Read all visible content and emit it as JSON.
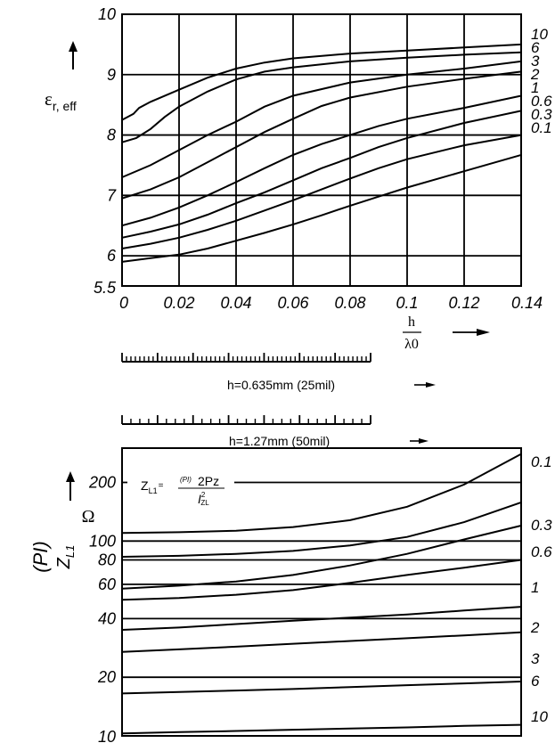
{
  "chart_data": [
    {
      "type": "line",
      "ylabel_symbol": "ε",
      "ylabel_sub": "r, eff",
      "xlabel_num": "h",
      "xlabel_den": "λ0",
      "x_ticks": [
        "0",
        "0.02",
        "0.04",
        "0.06",
        "0.08",
        "0.1",
        "0.12",
        "0.14"
      ],
      "y_ticks": [
        {
          "v": 5.5,
          "t": "5.5"
        },
        {
          "v": 6,
          "t": "6"
        },
        {
          "v": 7,
          "t": "7"
        },
        {
          "v": 8,
          "t": "8"
        },
        {
          "v": 9,
          "t": "9"
        },
        {
          "v": 10,
          "t": "10"
        }
      ],
      "xlim": [
        0,
        0.14
      ],
      "ylim": [
        5.5,
        10
      ],
      "grid": true,
      "series": [
        {
          "name": "10",
          "points": [
            [
              0,
              8.25
            ],
            [
              0.004,
              8.35
            ],
            [
              0.006,
              8.45
            ],
            [
              0.01,
              8.55
            ],
            [
              0.02,
              8.75
            ],
            [
              0.03,
              8.95
            ],
            [
              0.04,
              9.1
            ],
            [
              0.05,
              9.2
            ],
            [
              0.06,
              9.27
            ],
            [
              0.08,
              9.35
            ],
            [
              0.1,
              9.4
            ],
            [
              0.12,
              9.45
            ],
            [
              0.14,
              9.5
            ]
          ]
        },
        {
          "name": "6",
          "points": [
            [
              0,
              7.88
            ],
            [
              0.005,
              7.95
            ],
            [
              0.01,
              8.1
            ],
            [
              0.015,
              8.3
            ],
            [
              0.02,
              8.47
            ],
            [
              0.03,
              8.72
            ],
            [
              0.04,
              8.92
            ],
            [
              0.05,
              9.05
            ],
            [
              0.06,
              9.12
            ],
            [
              0.08,
              9.22
            ],
            [
              0.1,
              9.28
            ],
            [
              0.12,
              9.33
            ],
            [
              0.14,
              9.37
            ]
          ]
        },
        {
          "name": "3",
          "points": [
            [
              0,
              7.3
            ],
            [
              0.01,
              7.5
            ],
            [
              0.02,
              7.75
            ],
            [
              0.03,
              8.0
            ],
            [
              0.04,
              8.22
            ],
            [
              0.05,
              8.47
            ],
            [
              0.06,
              8.65
            ],
            [
              0.08,
              8.87
            ],
            [
              0.1,
              9.0
            ],
            [
              0.12,
              9.1
            ],
            [
              0.14,
              9.22
            ]
          ]
        },
        {
          "name": "2",
          "points": [
            [
              0,
              6.95
            ],
            [
              0.01,
              7.1
            ],
            [
              0.02,
              7.3
            ],
            [
              0.03,
              7.55
            ],
            [
              0.04,
              7.8
            ],
            [
              0.05,
              8.05
            ],
            [
              0.06,
              8.27
            ],
            [
              0.07,
              8.48
            ],
            [
              0.08,
              8.62
            ],
            [
              0.1,
              8.8
            ],
            [
              0.12,
              8.93
            ],
            [
              0.14,
              9.05
            ]
          ]
        },
        {
          "name": "1",
          "points": [
            [
              0,
              6.5
            ],
            [
              0.01,
              6.63
            ],
            [
              0.02,
              6.8
            ],
            [
              0.03,
              7.0
            ],
            [
              0.04,
              7.22
            ],
            [
              0.05,
              7.45
            ],
            [
              0.06,
              7.67
            ],
            [
              0.07,
              7.85
            ],
            [
              0.08,
              8.0
            ],
            [
              0.09,
              8.15
            ],
            [
              0.1,
              8.27
            ],
            [
              0.12,
              8.45
            ],
            [
              0.14,
              8.65
            ]
          ]
        },
        {
          "name": "0.6",
          "points": [
            [
              0,
              6.3
            ],
            [
              0.01,
              6.4
            ],
            [
              0.02,
              6.52
            ],
            [
              0.03,
              6.68
            ],
            [
              0.04,
              6.87
            ],
            [
              0.05,
              7.05
            ],
            [
              0.06,
              7.25
            ],
            [
              0.07,
              7.45
            ],
            [
              0.08,
              7.62
            ],
            [
              0.09,
              7.8
            ],
            [
              0.1,
              7.95
            ],
            [
              0.12,
              8.2
            ],
            [
              0.14,
              8.4
            ]
          ]
        },
        {
          "name": "0.3",
          "points": [
            [
              0,
              6.12
            ],
            [
              0.01,
              6.2
            ],
            [
              0.02,
              6.3
            ],
            [
              0.03,
              6.43
            ],
            [
              0.04,
              6.58
            ],
            [
              0.05,
              6.75
            ],
            [
              0.06,
              6.92
            ],
            [
              0.07,
              7.1
            ],
            [
              0.08,
              7.28
            ],
            [
              0.09,
              7.45
            ],
            [
              0.1,
              7.6
            ],
            [
              0.12,
              7.83
            ],
            [
              0.14,
              8.0
            ]
          ]
        },
        {
          "name": "0.1",
          "points": [
            [
              0,
              5.9
            ],
            [
              0.01,
              5.96
            ],
            [
              0.02,
              6.02
            ],
            [
              0.03,
              6.12
            ],
            [
              0.04,
              6.25
            ],
            [
              0.05,
              6.38
            ],
            [
              0.06,
              6.52
            ],
            [
              0.07,
              6.67
            ],
            [
              0.08,
              6.83
            ],
            [
              0.09,
              6.98
            ],
            [
              0.1,
              7.13
            ],
            [
              0.12,
              7.4
            ],
            [
              0.14,
              7.67
            ]
          ]
        }
      ]
    },
    {
      "type": "line",
      "yscale": "log",
      "ylabel_rot": "(PI)",
      "ylabel_z": "Z",
      "ylabel_zsub": "L1",
      "unit": "Ω",
      "y_ticks": [
        {
          "v": 10,
          "t": "10"
        },
        {
          "v": 20,
          "t": "20"
        },
        {
          "v": 40,
          "t": "40"
        },
        {
          "v": 60,
          "t": "60"
        },
        {
          "v": 80,
          "t": "80"
        },
        {
          "v": 100,
          "t": "100"
        },
        {
          "v": 200,
          "t": "200"
        }
      ],
      "ylim": [
        10,
        300
      ],
      "xlim": [
        0,
        0.14
      ],
      "grid": true,
      "series": [
        {
          "name": "0.1",
          "points": [
            [
              0,
              110
            ],
            [
              0.02,
              111
            ],
            [
              0.04,
              113
            ],
            [
              0.06,
              118
            ],
            [
              0.08,
              128
            ],
            [
              0.1,
              150
            ],
            [
              0.12,
              195
            ],
            [
              0.14,
              280
            ]
          ]
        },
        {
          "name": "0.3",
          "points": [
            [
              0,
              83
            ],
            [
              0.02,
              84
            ],
            [
              0.04,
              86
            ],
            [
              0.06,
              89
            ],
            [
              0.08,
              95
            ],
            [
              0.1,
              105
            ],
            [
              0.12,
              125
            ],
            [
              0.14,
              158
            ]
          ]
        },
        {
          "name": "0.6",
          "points": [
            [
              0,
              57
            ],
            [
              0.02,
              59
            ],
            [
              0.04,
              62
            ],
            [
              0.06,
              67
            ],
            [
              0.08,
              75
            ],
            [
              0.1,
              86
            ],
            [
              0.12,
              102
            ],
            [
              0.14,
              120
            ]
          ]
        },
        {
          "name": "1",
          "points": [
            [
              0,
              50
            ],
            [
              0.02,
              51
            ],
            [
              0.04,
              53
            ],
            [
              0.06,
              56
            ],
            [
              0.08,
              61
            ],
            [
              0.1,
              67
            ],
            [
              0.12,
              73
            ],
            [
              0.14,
              80
            ]
          ]
        },
        {
          "name": "2",
          "points": [
            [
              0,
              35
            ],
            [
              0.02,
              36
            ],
            [
              0.04,
              37.5
            ],
            [
              0.06,
              39
            ],
            [
              0.08,
              40.5
            ],
            [
              0.1,
              42
            ],
            [
              0.12,
              44
            ],
            [
              0.14,
              46
            ]
          ]
        },
        {
          "name": "3",
          "points": [
            [
              0,
              27
            ],
            [
              0.02,
              27.8
            ],
            [
              0.04,
              28.7
            ],
            [
              0.06,
              29.7
            ],
            [
              0.08,
              30.7
            ],
            [
              0.1,
              31.7
            ],
            [
              0.12,
              32.8
            ],
            [
              0.14,
              34
            ]
          ]
        },
        {
          "name": "6",
          "points": [
            [
              0,
              16.5
            ],
            [
              0.02,
              16.8
            ],
            [
              0.04,
              17.1
            ],
            [
              0.06,
              17.4
            ],
            [
              0.08,
              17.8
            ],
            [
              0.1,
              18.2
            ],
            [
              0.12,
              18.6
            ],
            [
              0.14,
              19
            ]
          ]
        },
        {
          "name": "10",
          "points": [
            [
              0,
              10.3
            ],
            [
              0.02,
              10.45
            ],
            [
              0.04,
              10.6
            ],
            [
              0.06,
              10.75
            ],
            [
              0.08,
              10.9
            ],
            [
              0.1,
              11.05
            ],
            [
              0.12,
              11.25
            ],
            [
              0.14,
              11.4
            ]
          ]
        }
      ]
    }
  ],
  "scales": [
    {
      "label": "h=0.635mm (25mil)",
      "minor_count": 56,
      "major_every": 8
    },
    {
      "label": "h=1.27mm (50mil)",
      "minor_count": 28,
      "major_every": 4
    }
  ],
  "formula": {
    "lhs_main": "Z",
    "lhs_sub": "L1",
    "eq": "=",
    "num_sup": "(PI)",
    "num_main": "2Pz",
    "den_main": "I",
    "den_sup": "2",
    "den_sub": "ZL"
  }
}
